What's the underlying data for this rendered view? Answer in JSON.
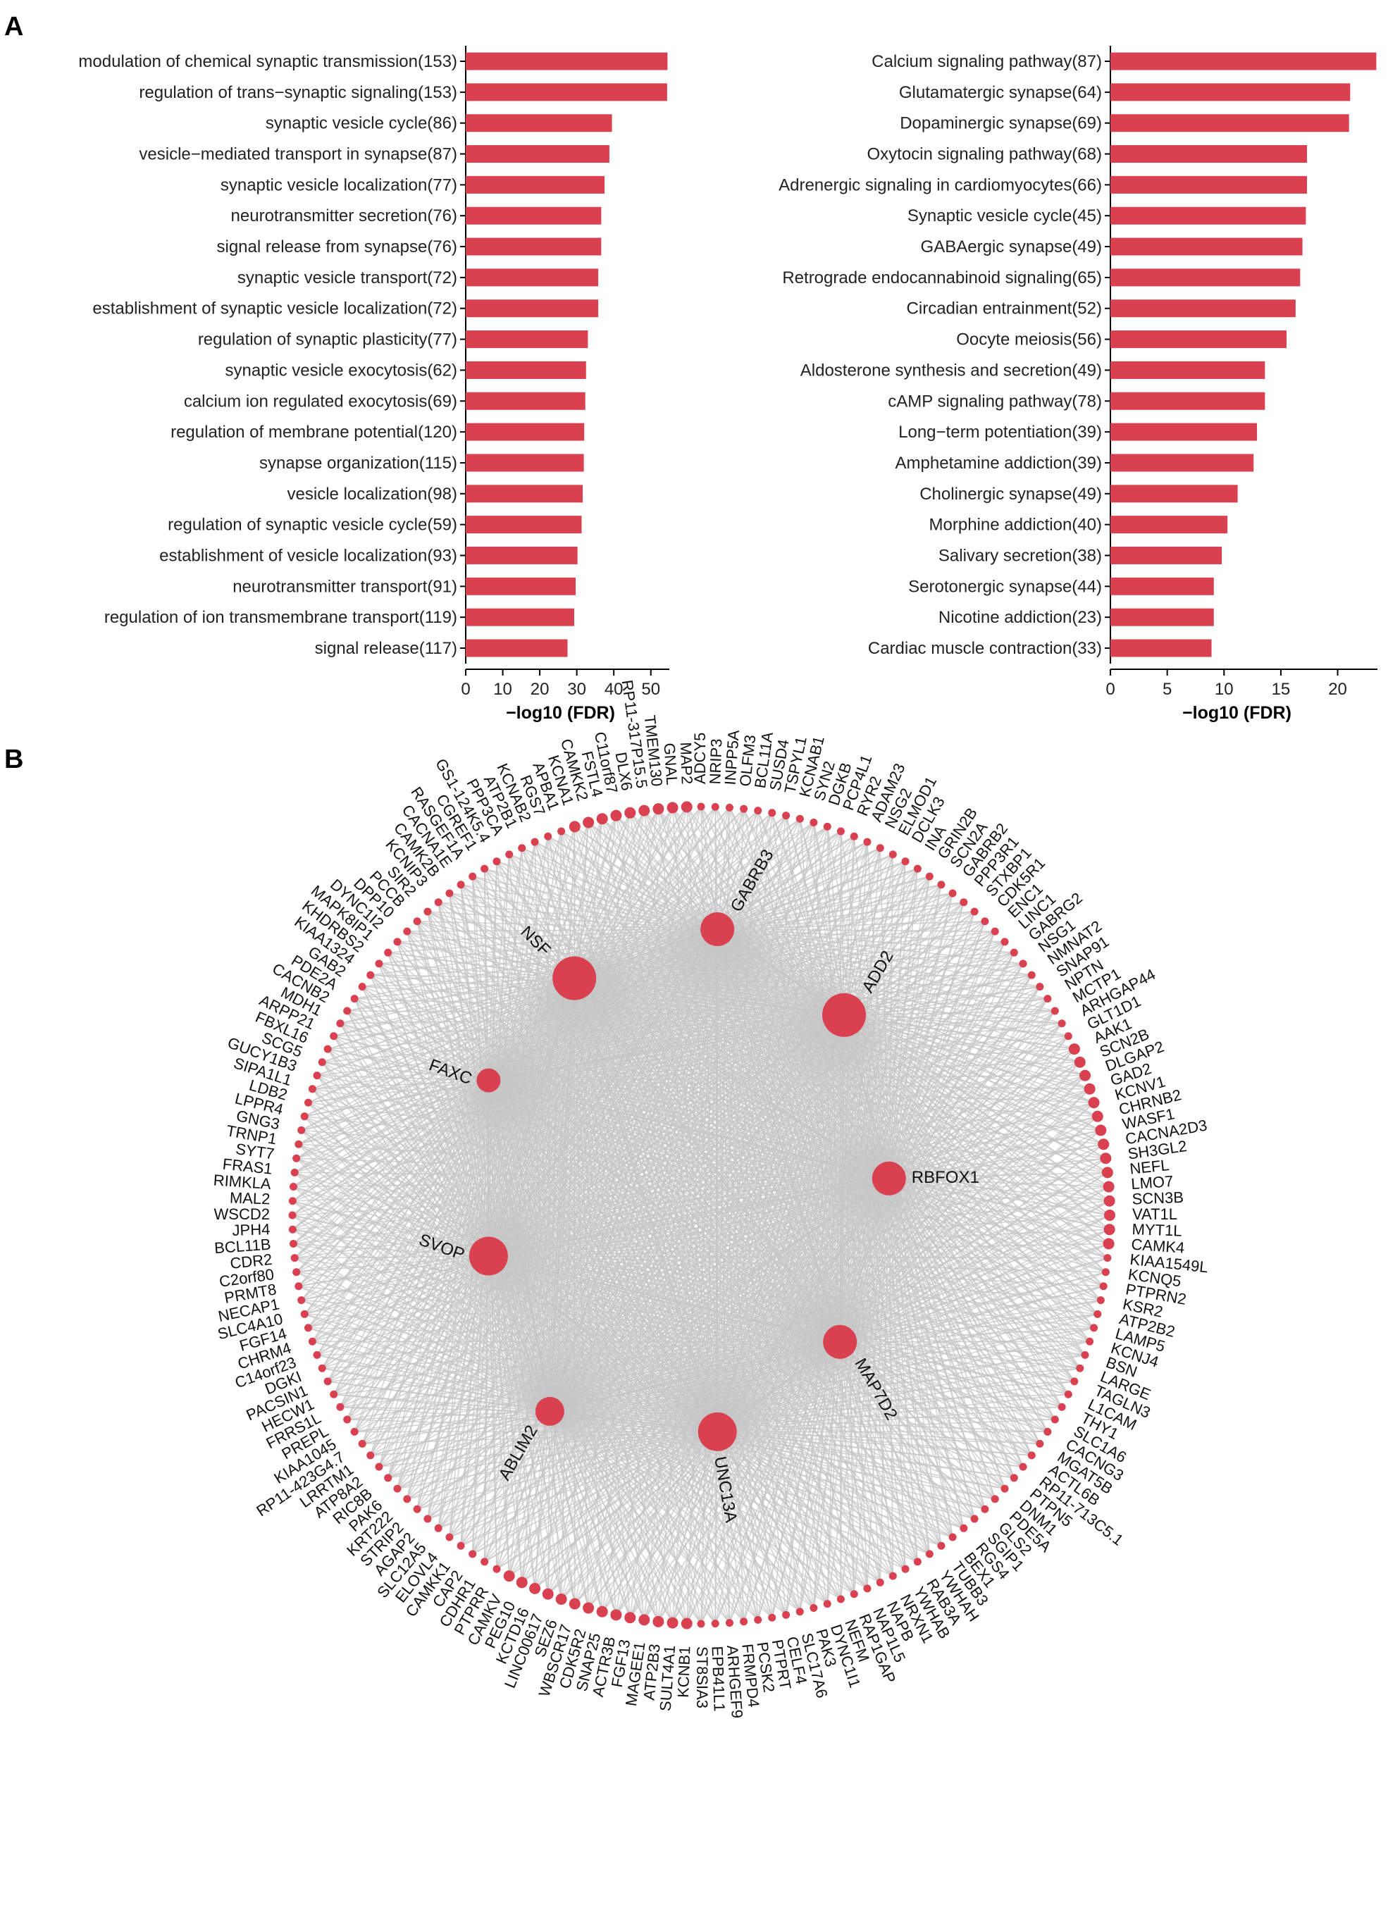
{
  "panel_a_label": "A",
  "panel_b_label": "B",
  "colors": {
    "bar": "#d94050",
    "node": "#d94050",
    "edge": "#c6c6c6",
    "axis": "#000000",
    "text": "#222222"
  },
  "chart_data": [
    {
      "type": "bar",
      "orientation": "horizontal",
      "categories": [
        "modulation of chemical synaptic transmission(153)",
        "regulation of trans−synaptic signaling(153)",
        "synaptic vesicle cycle(86)",
        "vesicle−mediated transport in synapse(87)",
        "synaptic vesicle localization(77)",
        "neurotransmitter secretion(76)",
        "signal release from synapse(76)",
        "synaptic vesicle transport(72)",
        "establishment of synaptic vesicle localization(72)",
        "regulation of synaptic plasticity(77)",
        "synaptic vesicle exocytosis(62)",
        "calcium ion regulated exocytosis(69)",
        "regulation of membrane potential(120)",
        "synapse organization(115)",
        "vesicle localization(98)",
        "regulation of synaptic vesicle cycle(59)",
        "establishment of vesicle localization(93)",
        "neurotransmitter transport(91)",
        "regulation of ion transmembrane transport(119)",
        "signal release(117)"
      ],
      "values": [
        54.5,
        54.4,
        39.5,
        38.8,
        37.5,
        36.6,
        36.6,
        35.8,
        35.8,
        33.0,
        32.5,
        32.3,
        32.0,
        31.9,
        31.6,
        31.3,
        30.2,
        29.7,
        29.3,
        27.5
      ],
      "xlim": [
        0,
        55
      ],
      "xticks": [
        0,
        10,
        20,
        30,
        40,
        50
      ],
      "xlabel": "−log10 (FDR)"
    },
    {
      "type": "bar",
      "orientation": "horizontal",
      "categories": [
        "Calcium signaling pathway(87)",
        "Glutamatergic synapse(64)",
        "Dopaminergic synapse(69)",
        "Oxytocin signaling pathway(68)",
        "Adrenergic signaling in cardiomyocytes(66)",
        "Synaptic vesicle cycle(45)",
        "GABAergic synapse(49)",
        "Retrograde endocannabinoid signaling(65)",
        "Circadian entrainment(52)",
        "Oocyte meiosis(56)",
        "Aldosterone synthesis and secretion(49)",
        "cAMP signaling pathway(78)",
        "Long−term potentiation(39)",
        "Amphetamine addiction(39)",
        "Cholinergic synapse(49)",
        "Morphine addiction(40)",
        "Salivary secretion(38)",
        "Serotonergic synapse(44)",
        "Nicotine addiction(23)",
        "Cardiac muscle contraction(33)"
      ],
      "values": [
        23.4,
        21.1,
        21.0,
        17.3,
        17.3,
        17.2,
        16.9,
        16.7,
        16.3,
        15.5,
        13.6,
        13.6,
        12.9,
        12.6,
        11.2,
        10.3,
        9.8,
        9.1,
        9.1,
        8.9
      ],
      "xlim": [
        0,
        23.5
      ],
      "xticks": [
        0,
        5,
        10,
        15,
        20
      ],
      "xlabel": "−log10 (FDR)"
    },
    {
      "type": "network",
      "hubs": [
        {
          "name": "NSF",
          "x": -0.31,
          "y": -0.58,
          "size": 3,
          "label_side": "top-left"
        },
        {
          "name": "GABRB3",
          "x": 0.04,
          "y": -0.7,
          "size": 2,
          "label_side": "top-right"
        },
        {
          "name": "ADD2",
          "x": 0.35,
          "y": -0.49,
          "size": 3,
          "label_side": "top-right"
        },
        {
          "name": "FAXC",
          "x": -0.52,
          "y": -0.33,
          "size": 1,
          "label_side": "left"
        },
        {
          "name": "RBFOX1",
          "x": 0.46,
          "y": -0.09,
          "size": 2,
          "label_side": "right"
        },
        {
          "name": "SVOP",
          "x": -0.52,
          "y": 0.1,
          "size": 2.5,
          "label_side": "left"
        },
        {
          "name": "MAP7D2",
          "x": 0.34,
          "y": 0.31,
          "size": 2,
          "label_side": "bottom-right"
        },
        {
          "name": "ABLIM2",
          "x": -0.37,
          "y": 0.48,
          "size": 1.5,
          "label_side": "bottom-left"
        },
        {
          "name": "UNC13A",
          "x": 0.04,
          "y": 0.53,
          "size": 2.5,
          "label_side": "bottom"
        }
      ],
      "peripheral_nodes": [
        "SUSD4",
        "TSPYL1",
        "KCNAB1",
        "SYN2",
        "DGKB",
        "PCP4L1",
        "RYR2",
        "ADAM23",
        "NSG2",
        "ELMOD1",
        "DCLK3",
        "INA",
        "GRIN2B",
        "SCN2A",
        "GABRB2",
        "PPP3R1",
        "STXBP1",
        "CDK5R1",
        "ENC1",
        "LINC1",
        "GABRG2",
        "NSG1",
        "NMNAT2",
        "SNAP91",
        "NPTN",
        "MCTP1",
        "ARHGAP44",
        "GLT1D1",
        "AAK1",
        "SCN2B",
        "DLGAP2",
        "GAD2",
        "KCNV1",
        "CHRNB2",
        "WASF1",
        "CACNA2D3",
        "SH3GL2",
        "NEFL",
        "LMO7",
        "SCN3B",
        "VAT1L",
        "MYT1L",
        "CAMK4",
        "KIAA1549L",
        "KCNQ5",
        "PTPRN2",
        "KSR2",
        "ATP2B2",
        "LAMP5",
        "KCNJ4",
        "BSN",
        "LARGE",
        "TAGLN3",
        "L1CAM",
        "THY1",
        "SLC1A6",
        "CACNG3",
        "MGAT5B",
        "ACTL6B",
        "RP11-713C5.1",
        "PTPN5",
        "DNM1",
        "PDE5A",
        "GLS2",
        "SGIP1",
        "RGS4",
        "BEX1",
        "TUBB3",
        "YWHAH",
        "RAB3A",
        "YWHAB",
        "NRXN1",
        "NAPB",
        "NAP1L5",
        "RAP1GAP",
        "NEFM",
        "DYNC1I1",
        "PAK3",
        "SLC17A6",
        "CELF4",
        "PTPRT",
        "PCSK2",
        "FRMPD4",
        "ARHGEF9",
        "EPB41L1",
        "ST8SIA3",
        "KCNB1",
        "SULT4A1",
        "ATP2B3",
        "MAGEE1",
        "FGF13",
        "ACTR3B",
        "SNAP25",
        "CDK5R2",
        "WBSCR17",
        "SEZ6",
        "LINC00617",
        "KCTD16",
        "PEG10",
        "CAMKV",
        "PTPRR",
        "CDHR1",
        "CAP2",
        "CAMKK1",
        "ELOVL4",
        "SLC12A5",
        "AGAP2",
        "STRIP2",
        "KRT222",
        "PAK6",
        "RIC8B",
        "ATP8A2",
        "LRRTM1",
        "RP11-423G4.7",
        "KIAA1045",
        "PREPL",
        "FRRS1L",
        "HECW1",
        "PACSIN1",
        "DGKI",
        "C14orf23",
        "CHRM4",
        "FGF14",
        "SLC4A10",
        "NECAP1",
        "PRMT8",
        "C2orf80",
        "CDR2",
        "BCL11B",
        "JPH4",
        "WSCD2",
        "MAL2",
        "RIMKLA",
        "FRAS1",
        "SYT7",
        "TRNP1",
        "GNG3",
        "LPPR4",
        "LDB2",
        "SIPA1L1",
        "GUCY1B3",
        "SCG5",
        "FBXL16",
        "ARPP21",
        "MDH1",
        "CACNB2",
        "PDE2A",
        "GAB2",
        "KIAA1324",
        "KHDRBS2",
        "MAPK8IP1",
        "DYNC1I2",
        "DPP10",
        "PCCB",
        "SIR2",
        "KCNIP3",
        "CAMK2B",
        "CACNA1E",
        "RASGEF1A",
        "CGREF1",
        "GS1-124K5.4",
        "PPP3CA",
        "ATP2B1",
        "KCNAB2",
        "RGS7",
        "APBA1",
        "KCNA1",
        "CAMKK2",
        "FSTL4",
        "C11orf87",
        "DLX6",
        "RP11-317P15.5",
        "TMEM130",
        "GNAL",
        "MAP2",
        "ADCY5",
        "NRIP3",
        "INPP5A",
        "OLFM3",
        "BCL11A"
      ],
      "edges_from_each_hub_to": "all peripheral nodes (dense fan)"
    }
  ]
}
